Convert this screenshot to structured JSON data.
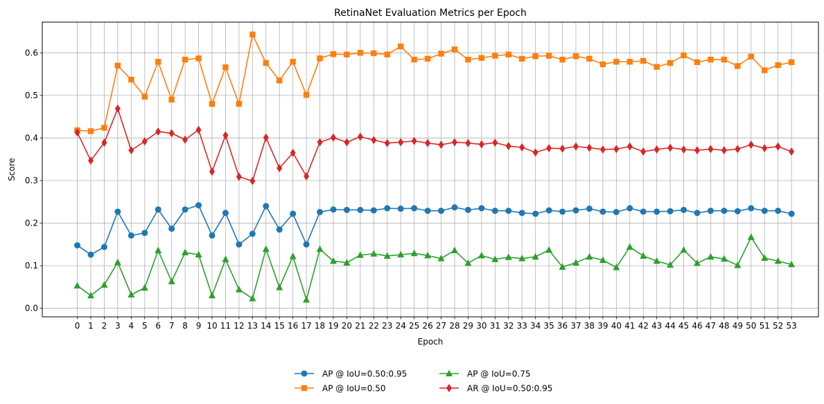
{
  "chart_data": {
    "type": "line",
    "title": "RetinaNet Evaluation Metrics per Epoch",
    "xlabel": "Epoch",
    "ylabel": "Score",
    "ylim": [
      -0.02,
      0.672
    ],
    "yticks": [
      0.0,
      0.1,
      0.2,
      0.3,
      0.4,
      0.5,
      0.6
    ],
    "ytick_labels": [
      "0.0",
      "0.1",
      "0.2",
      "0.3",
      "0.4",
      "0.5",
      "0.6"
    ],
    "grid": true,
    "legend_position": "bottom-center",
    "x": [
      0,
      1,
      2,
      3,
      4,
      5,
      6,
      7,
      8,
      9,
      10,
      11,
      12,
      13,
      14,
      15,
      16,
      17,
      18,
      19,
      20,
      21,
      22,
      23,
      24,
      25,
      26,
      27,
      28,
      29,
      30,
      31,
      32,
      33,
      34,
      35,
      36,
      37,
      38,
      39,
      40,
      41,
      42,
      43,
      44,
      45,
      46,
      47,
      48,
      49,
      50,
      51,
      52,
      53
    ],
    "series": [
      {
        "name": "AP @ IoU=0.50:0.95",
        "color": "#1f77b4",
        "marker": "circle",
        "values": [
          0.148,
          0.126,
          0.144,
          0.227,
          0.171,
          0.177,
          0.232,
          0.187,
          0.232,
          0.242,
          0.171,
          0.224,
          0.15,
          0.175,
          0.24,
          0.185,
          0.222,
          0.15,
          0.226,
          0.232,
          0.231,
          0.231,
          0.23,
          0.235,
          0.234,
          0.235,
          0.229,
          0.229,
          0.237,
          0.231,
          0.235,
          0.229,
          0.229,
          0.224,
          0.222,
          0.23,
          0.227,
          0.23,
          0.234,
          0.227,
          0.226,
          0.235,
          0.227,
          0.227,
          0.228,
          0.231,
          0.224,
          0.229,
          0.229,
          0.228,
          0.235,
          0.229,
          0.229,
          0.222
        ]
      },
      {
        "name": "AP @ IoU=0.50",
        "color": "#ff7f0e",
        "marker": "square",
        "values": [
          0.418,
          0.416,
          0.424,
          0.57,
          0.537,
          0.497,
          0.579,
          0.49,
          0.584,
          0.587,
          0.48,
          0.566,
          0.48,
          0.643,
          0.576,
          0.535,
          0.579,
          0.501,
          0.587,
          0.597,
          0.596,
          0.6,
          0.599,
          0.596,
          0.615,
          0.584,
          0.586,
          0.598,
          0.608,
          0.584,
          0.588,
          0.593,
          0.596,
          0.586,
          0.592,
          0.593,
          0.584,
          0.592,
          0.586,
          0.573,
          0.579,
          0.579,
          0.581,
          0.567,
          0.576,
          0.594,
          0.578,
          0.584,
          0.584,
          0.569,
          0.591,
          0.559,
          0.571,
          0.578
        ]
      },
      {
        "name": "AP @ IoU=0.75",
        "color": "#2ca02c",
        "marker": "triangle",
        "values": [
          0.053,
          0.03,
          0.055,
          0.108,
          0.032,
          0.048,
          0.136,
          0.063,
          0.131,
          0.126,
          0.03,
          0.115,
          0.044,
          0.023,
          0.139,
          0.049,
          0.122,
          0.02,
          0.139,
          0.111,
          0.107,
          0.125,
          0.128,
          0.123,
          0.126,
          0.129,
          0.124,
          0.117,
          0.136,
          0.106,
          0.124,
          0.115,
          0.12,
          0.117,
          0.121,
          0.137,
          0.097,
          0.107,
          0.121,
          0.113,
          0.096,
          0.144,
          0.123,
          0.111,
          0.102,
          0.137,
          0.106,
          0.121,
          0.116,
          0.101,
          0.167,
          0.118,
          0.111,
          0.103
        ]
      },
      {
        "name": "AR @ IoU=0.50:0.95",
        "color": "#d62728",
        "marker": "diamond",
        "values": [
          0.413,
          0.347,
          0.389,
          0.469,
          0.371,
          0.392,
          0.415,
          0.411,
          0.396,
          0.419,
          0.321,
          0.406,
          0.309,
          0.299,
          0.401,
          0.329,
          0.365,
          0.31,
          0.39,
          0.401,
          0.39,
          0.403,
          0.395,
          0.388,
          0.39,
          0.393,
          0.388,
          0.384,
          0.39,
          0.388,
          0.385,
          0.389,
          0.381,
          0.378,
          0.366,
          0.376,
          0.375,
          0.38,
          0.377,
          0.373,
          0.374,
          0.38,
          0.368,
          0.373,
          0.377,
          0.373,
          0.371,
          0.374,
          0.371,
          0.374,
          0.384,
          0.376,
          0.38,
          0.368
        ]
      }
    ]
  }
}
